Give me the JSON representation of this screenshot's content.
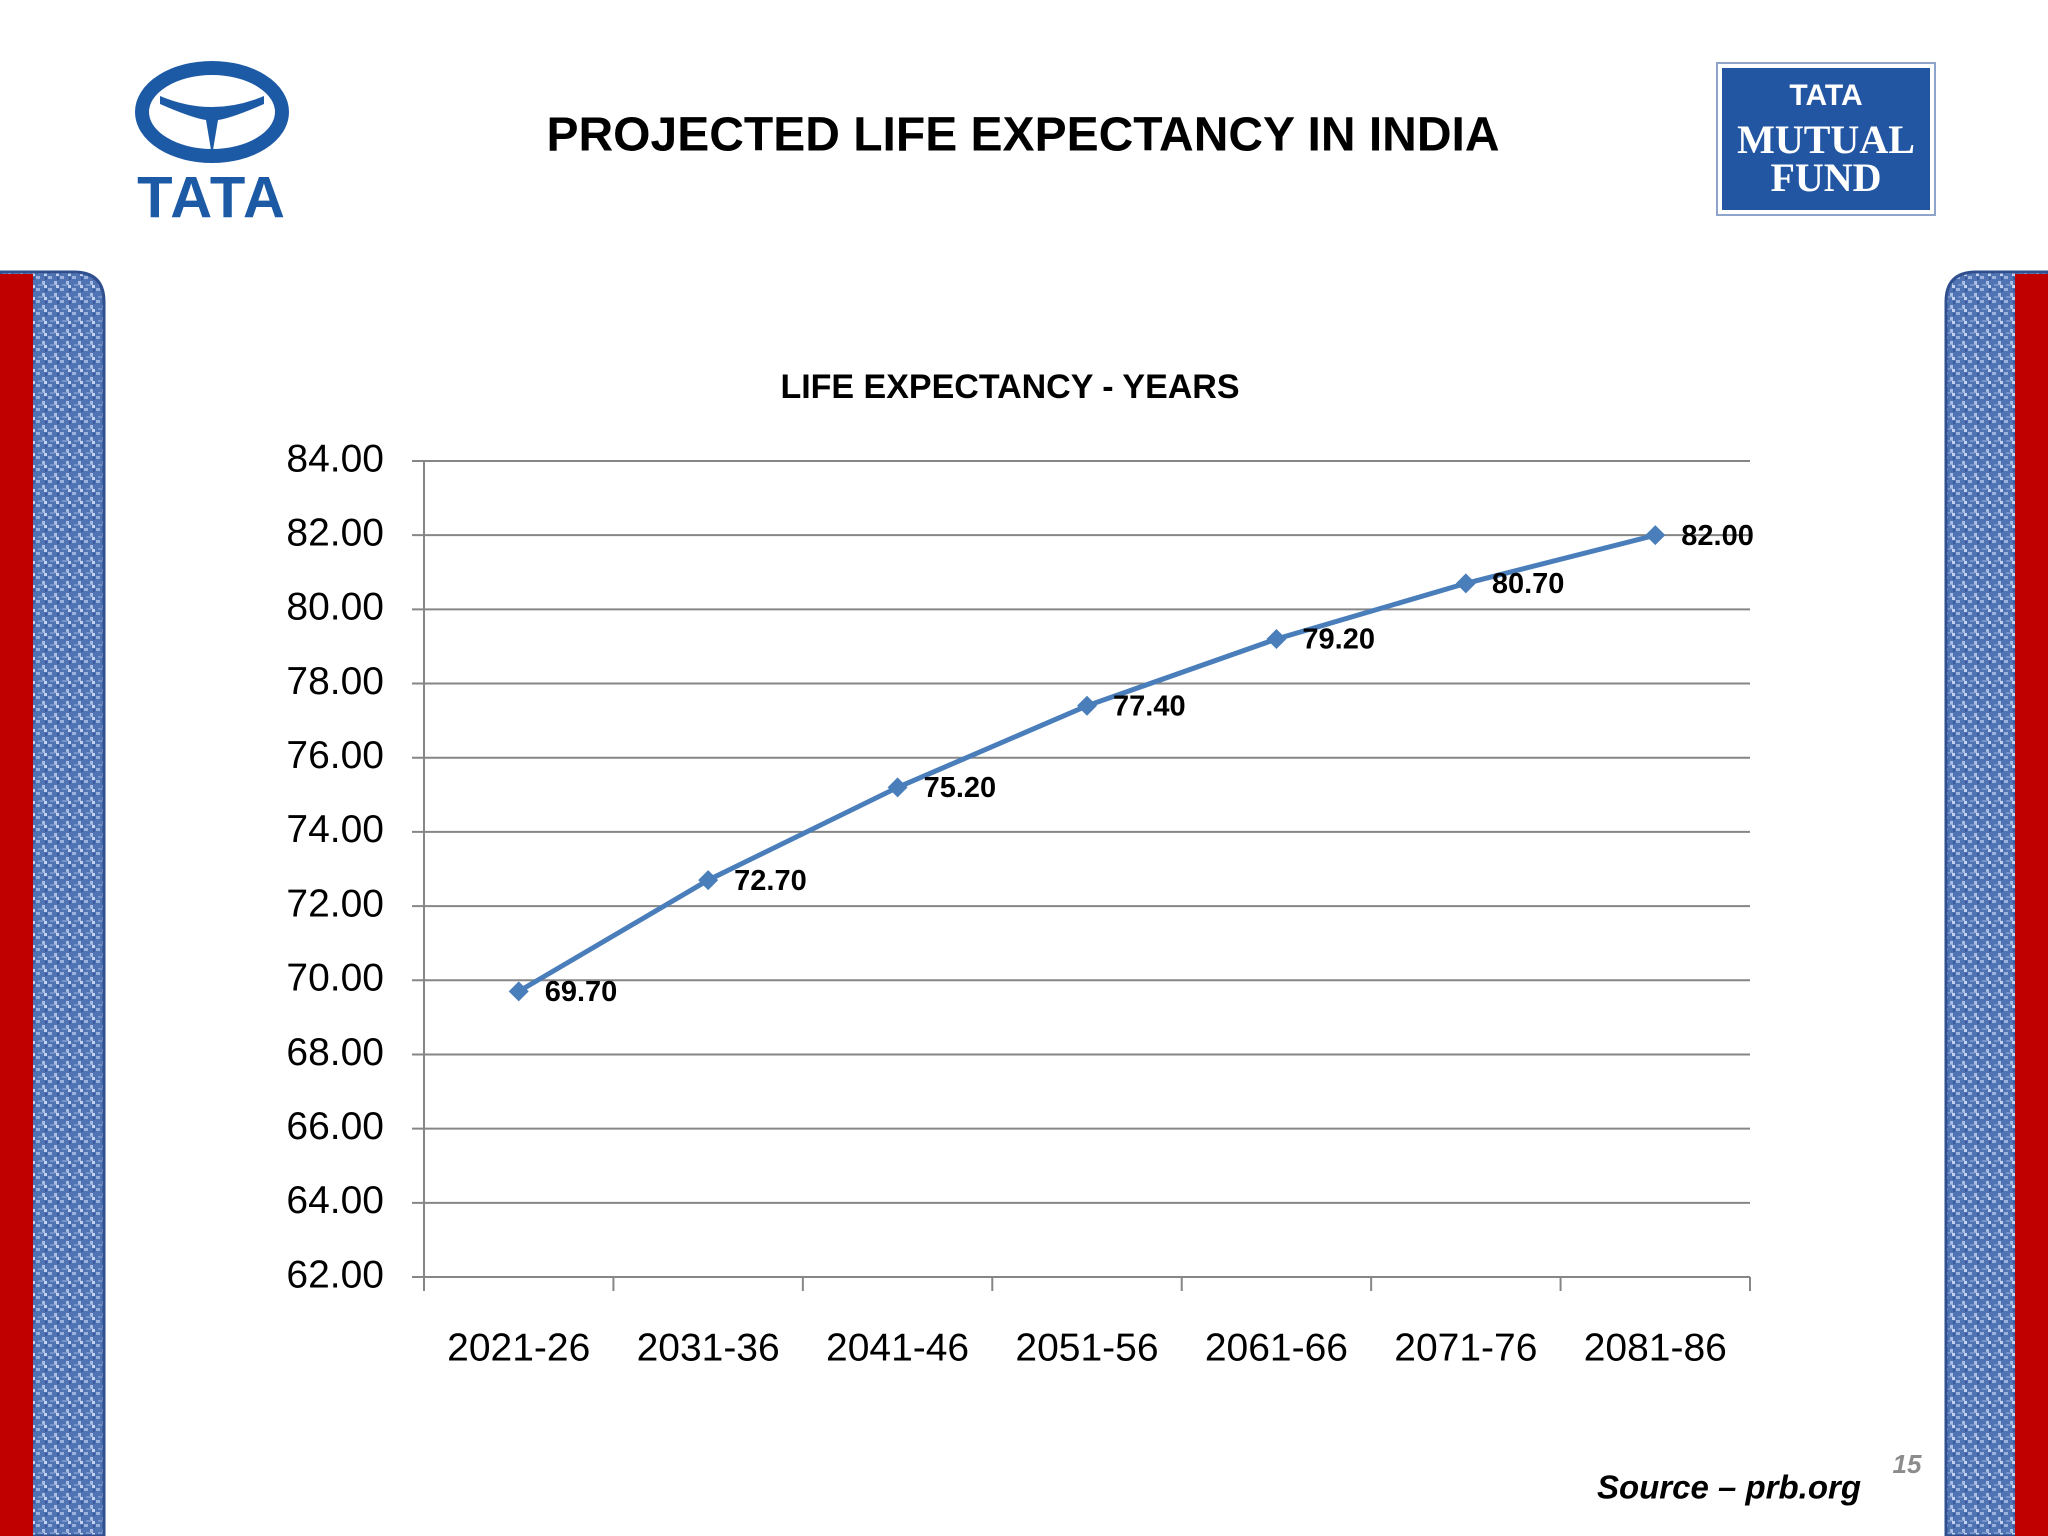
{
  "slide": {
    "title": "PROJECTED LIFE EXPECTANCY IN INDIA",
    "logo_left": "TATA",
    "logo_right": [
      "TATA",
      "MUTUAL",
      "FUND"
    ],
    "source": "Source – prb.org",
    "page_number": "15"
  },
  "chart_data": {
    "type": "line",
    "title": "LIFE EXPECTANCY - YEARS",
    "categories": [
      "2021-26",
      "2031-36",
      "2041-46",
      "2051-56",
      "2061-66",
      "2071-76",
      "2081-86"
    ],
    "values": [
      69.7,
      72.7,
      75.2,
      77.4,
      79.2,
      80.7,
      82.0
    ],
    "value_labels": [
      "69.70",
      "72.70",
      "75.20",
      "77.40",
      "79.20",
      "80.70",
      "82.00"
    ],
    "color": "#4a7ebb",
    "ylim": [
      62,
      84
    ],
    "yticks": [
      {
        "value": 62,
        "label": "62.00"
      },
      {
        "value": 64,
        "label": "64.00"
      },
      {
        "value": 66,
        "label": "66.00"
      },
      {
        "value": 68,
        "label": "68.00"
      },
      {
        "value": 70,
        "label": "70.00"
      },
      {
        "value": 72,
        "label": "72.00"
      },
      {
        "value": 74,
        "label": "74.00"
      },
      {
        "value": 76,
        "label": "76.00"
      },
      {
        "value": 78,
        "label": "78.00"
      },
      {
        "value": 80,
        "label": "80.00"
      },
      {
        "value": 82,
        "label": "82.00"
      },
      {
        "value": 84,
        "label": "84.00"
      }
    ],
    "grid": true
  }
}
